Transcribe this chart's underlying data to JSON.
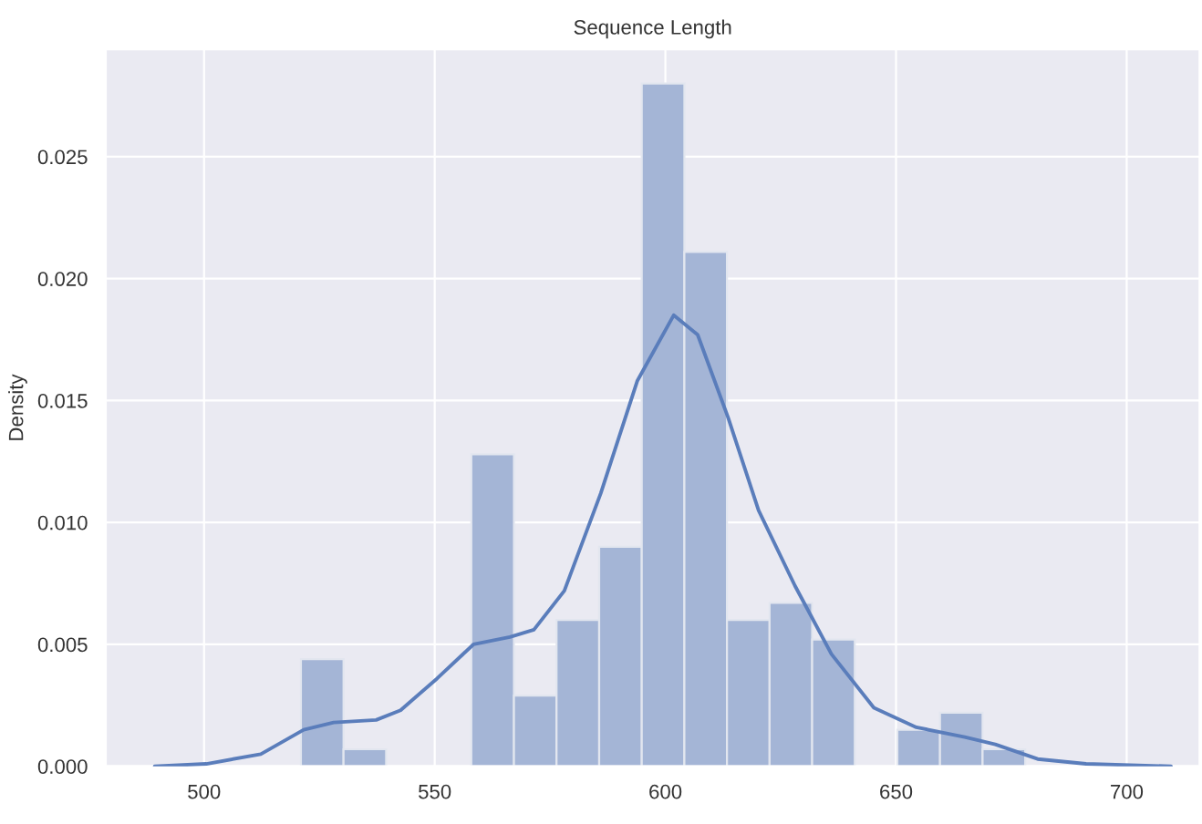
{
  "chart_data": {
    "type": "histogram",
    "title": "Sequence Length",
    "ylabel": "Density",
    "xlim": [
      478.7,
      715.8
    ],
    "ylim": [
      0,
      0.0294
    ],
    "xticks": [
      500,
      550,
      600,
      650,
      700
    ],
    "yticks": [
      {
        "value": 0,
        "label": "0.000"
      },
      {
        "value": 0.005,
        "label": "0.005"
      },
      {
        "value": 0.01,
        "label": "0.010"
      },
      {
        "value": 0.015,
        "label": "0.015"
      },
      {
        "value": 0.02,
        "label": "0.020"
      },
      {
        "value": 0.025,
        "label": "0.025"
      }
    ],
    "grid": true,
    "legend": false,
    "series": [
      {
        "color": "#a4b5d6",
        "bins": [
          521.0,
          530.24,
          539.47,
          548.71,
          557.94,
          567.18,
          576.41,
          585.65,
          594.88,
          604.12,
          613.35,
          622.59,
          631.82,
          641.06,
          650.29,
          659.53,
          668.76,
          678.0
        ],
        "values": [
          0.0044,
          0.0007,
          0,
          0,
          0.0128,
          0.0029,
          0.006,
          0.009,
          0.028,
          0.0211,
          0.006,
          0.0067,
          0.0052,
          0,
          0.0015,
          0.0022,
          0.0007
        ]
      },
      {
        "type": "line",
        "color": "#5a7dbb",
        "x": [
          489.3,
          500.5,
          512.3,
          521.6,
          528.1,
          537.3,
          542.6,
          550.5,
          558.4,
          566.3,
          571.5,
          578.1,
          586.0,
          593.9,
          601.8,
          607.0,
          613.6,
          620.2,
          628.1,
          636.0,
          645.2,
          654.4,
          664.9,
          671.5,
          680.7,
          691.2,
          709.6
        ],
        "values": [
          0,
          0.0001,
          0.0005,
          0.0015,
          0.0018,
          0.0019,
          0.0023,
          0.0036,
          0.005,
          0.0053,
          0.0056,
          0.0072,
          0.0112,
          0.0158,
          0.0185,
          0.0177,
          0.0143,
          0.0105,
          0.0074,
          0.0046,
          0.0024,
          0.0016,
          0.0012,
          0.0009,
          0.0003,
          0.0001,
          0
        ]
      }
    ]
  }
}
